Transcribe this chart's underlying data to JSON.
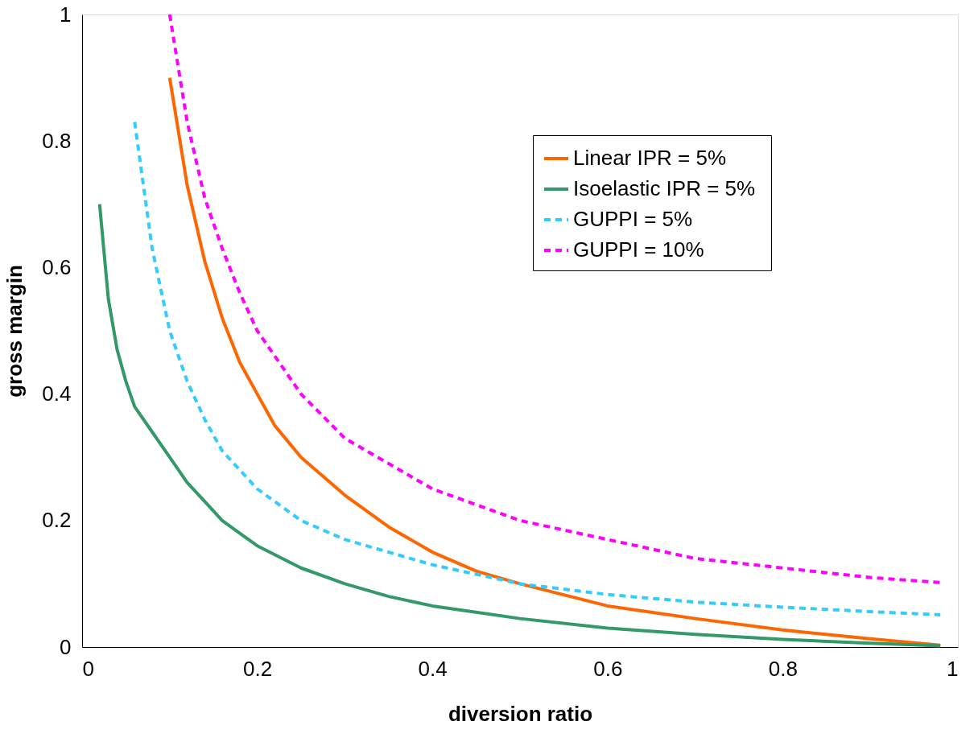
{
  "chart_data": {
    "type": "line",
    "xlabel": "diversion ratio",
    "ylabel": "gross margin",
    "xlim": [
      0,
      1
    ],
    "ylim": [
      0,
      1
    ],
    "xticks": [
      0,
      0.2,
      0.4,
      0.6,
      0.8,
      1
    ],
    "yticks": [
      0,
      0.2,
      0.4,
      0.6,
      0.8,
      1
    ],
    "grid": false,
    "legend": "top right",
    "marker": "none",
    "series": [
      {
        "name": "Linear IPR =  5%",
        "color": "#ff6600",
        "line_style": "solid",
        "x": [
          0.1,
          0.12,
          0.14,
          0.16,
          0.18,
          0.2,
          0.22,
          0.25,
          0.3,
          0.35,
          0.4,
          0.45,
          0.5,
          0.6,
          0.7,
          0.8,
          0.9,
          0.98
        ],
        "values": [
          0.9,
          0.73,
          0.61,
          0.52,
          0.45,
          0.4,
          0.35,
          0.3,
          0.24,
          0.19,
          0.15,
          0.12,
          0.1,
          0.065,
          0.045,
          0.027,
          0.013,
          0.003
        ]
      },
      {
        "name": "Isoelastic IPR =  5%",
        "color": "#339966",
        "line_style": "solid",
        "x": [
          0.02,
          0.03,
          0.04,
          0.05,
          0.06,
          0.08,
          0.1,
          0.12,
          0.14,
          0.16,
          0.18,
          0.2,
          0.25,
          0.3,
          0.35,
          0.4,
          0.5,
          0.6,
          0.7,
          0.8,
          0.9,
          0.98
        ],
        "values": [
          0.7,
          0.55,
          0.47,
          0.42,
          0.38,
          0.34,
          0.3,
          0.26,
          0.23,
          0.2,
          0.18,
          0.16,
          0.125,
          0.1,
          0.08,
          0.065,
          0.045,
          0.03,
          0.02,
          0.012,
          0.006,
          0.002
        ]
      },
      {
        "name": "GUPPI =  5%",
        "color": "#33ccff",
        "line_style": "dashed",
        "x": [
          0.06,
          0.08,
          0.1,
          0.12,
          0.14,
          0.16,
          0.2,
          0.25,
          0.3,
          0.4,
          0.5,
          0.6,
          0.7,
          0.8,
          0.9,
          0.98
        ],
        "values": [
          0.83,
          0.63,
          0.5,
          0.42,
          0.36,
          0.31,
          0.25,
          0.2,
          0.17,
          0.13,
          0.1,
          0.083,
          0.071,
          0.063,
          0.056,
          0.051
        ]
      },
      {
        "name": "GUPPI =  10%",
        "color": "#ff00ff",
        "line_style": "dashed",
        "x": [
          0.1,
          0.12,
          0.14,
          0.16,
          0.18,
          0.2,
          0.25,
          0.3,
          0.35,
          0.4,
          0.5,
          0.6,
          0.7,
          0.8,
          0.9,
          0.98
        ],
        "values": [
          1.0,
          0.83,
          0.71,
          0.63,
          0.56,
          0.5,
          0.4,
          0.33,
          0.29,
          0.25,
          0.2,
          0.17,
          0.14,
          0.125,
          0.11,
          0.102
        ]
      }
    ]
  }
}
